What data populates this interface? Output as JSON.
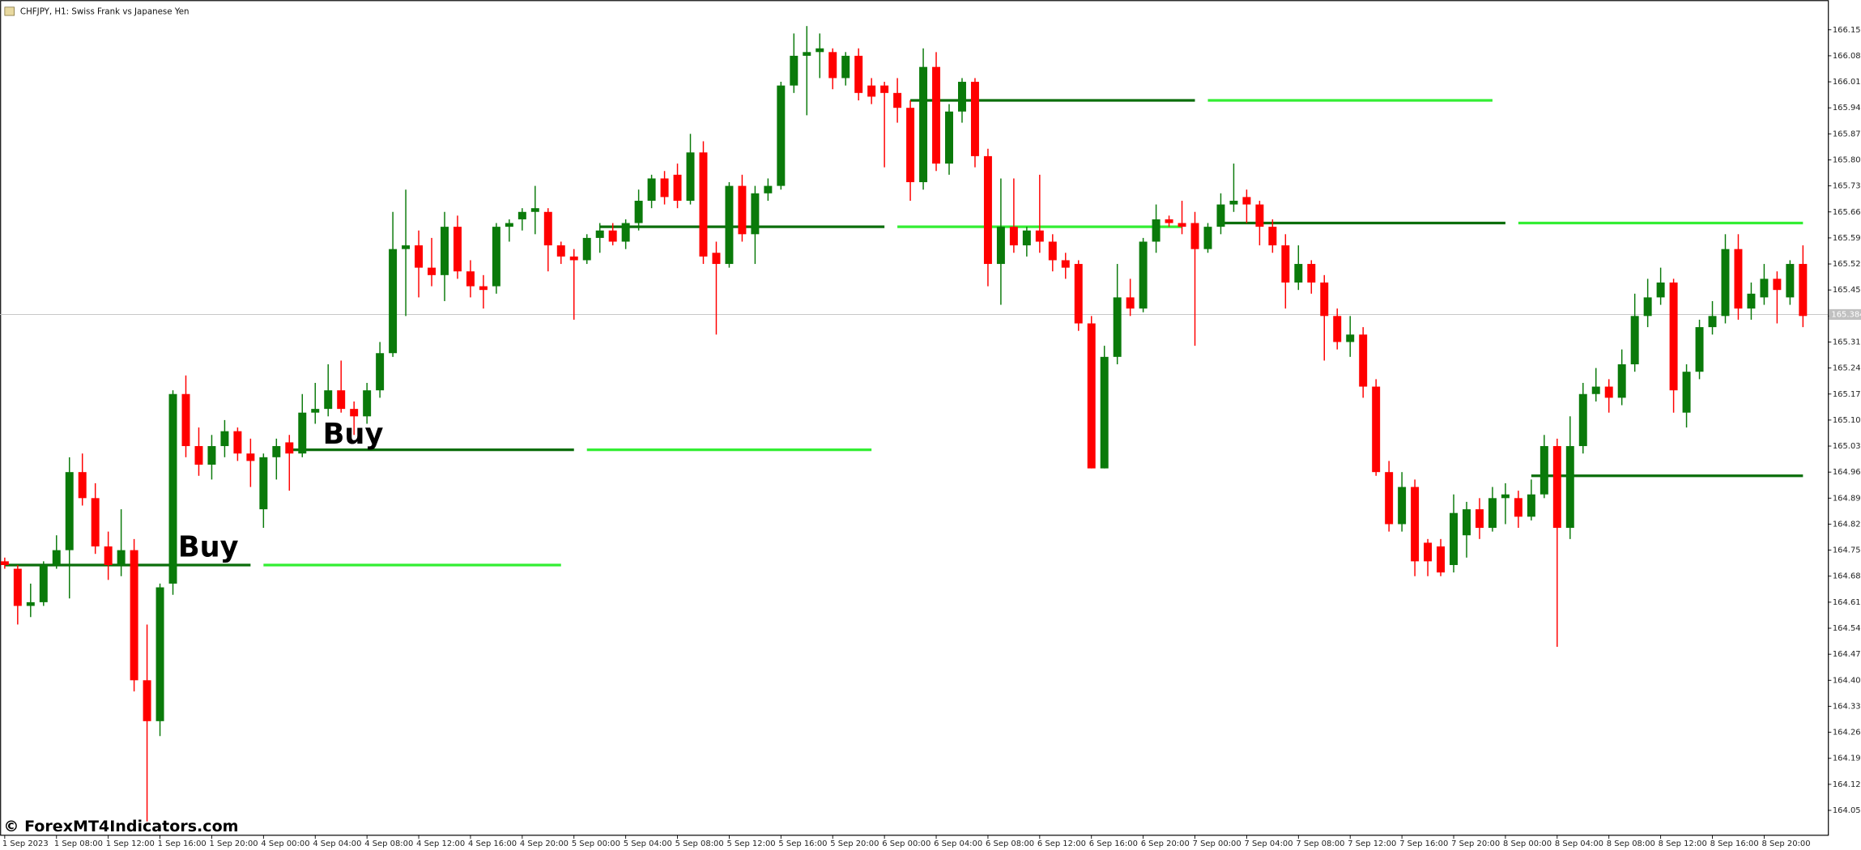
{
  "chart_data": {
    "type": "candlestick",
    "title": "CHFJPY, H1:  Swiss Frank vs Japanese Yen",
    "watermark": "© ForexMT4Indicators.com",
    "annotations": [
      "Buy",
      "Buy"
    ],
    "up_color": "#0a7a0a",
    "down_color": "#ff0000",
    "last_price": 165.384,
    "categories": [
      "1 Sep 2023",
      null,
      null,
      null,
      "1 Sep 08:00",
      null,
      null,
      null,
      "1 Sep 12:00",
      null,
      null,
      null,
      "1 Sep 16:00",
      null,
      null,
      null,
      "1 Sep 20:00",
      null,
      null,
      null,
      "4 Sep 00:00",
      null,
      null,
      null,
      "4 Sep 04:00",
      null,
      null,
      null,
      "4 Sep 08:00",
      null,
      null,
      null,
      "4 Sep 12:00",
      null,
      null,
      null,
      "4 Sep 16:00",
      null,
      null,
      null,
      "4 Sep 20:00",
      null,
      null,
      null,
      "5 Sep 00:00",
      null,
      null,
      null,
      "5 Sep 04:00",
      null,
      null,
      null,
      "5 Sep 08:00",
      null,
      null,
      null,
      "5 Sep 12:00",
      null,
      null,
      null,
      "5 Sep 16:00",
      null,
      null,
      null,
      "5 Sep 20:00",
      null,
      null,
      null,
      "6 Sep 00:00",
      null,
      null,
      null,
      "6 Sep 04:00",
      null,
      null,
      null,
      "6 Sep 08:00",
      null,
      null,
      null,
      "6 Sep 12:00",
      null,
      null,
      null,
      "6 Sep 16:00",
      null,
      null,
      null,
      "6 Sep 20:00",
      null,
      null,
      null,
      "7 Sep 00:00",
      null,
      null,
      null,
      "7 Sep 04:00",
      null,
      null,
      null,
      "7 Sep 08:00",
      null,
      null,
      null,
      "7 Sep 12:00",
      null,
      null,
      null,
      "7 Sep 16:00",
      null,
      null,
      null,
      "7 Sep 20:00",
      null,
      null,
      null,
      "8 Sep 00:00",
      null,
      null,
      null,
      "8 Sep 04:00",
      null,
      null,
      null,
      "8 Sep 08:00",
      null,
      null,
      null,
      "8 Sep 12:00",
      null,
      null,
      null,
      "8 Sep 16:00",
      null,
      null,
      null,
      "8 Sep 20:00",
      null,
      null,
      null
    ],
    "open": [
      164.72,
      164.7,
      164.6,
      164.61,
      164.71,
      164.75,
      164.96,
      164.89,
      164.76,
      164.71,
      164.75,
      164.4,
      164.29,
      164.66,
      165.17,
      165.03,
      164.98,
      165.03,
      165.07,
      165.01,
      164.86,
      165.0,
      165.04,
      165.01,
      165.12,
      165.13,
      165.18,
      165.13,
      165.11,
      165.18,
      165.28,
      165.56,
      165.57,
      165.51,
      165.49,
      165.62,
      165.5,
      165.46,
      165.46,
      165.62,
      165.64,
      165.66,
      165.66,
      165.57,
      165.54,
      165.53,
      165.59,
      165.61,
      165.58,
      165.63,
      165.69,
      165.75,
      165.76,
      165.69,
      165.82,
      165.55,
      165.52,
      165.73,
      165.6,
      165.71,
      165.73,
      166.0,
      166.08,
      166.09,
      166.09,
      166.02,
      166.08,
      166.0,
      166.0,
      165.98,
      165.94,
      165.74,
      166.05,
      165.79,
      165.93,
      166.01,
      165.81,
      165.52,
      165.62,
      165.57,
      165.61,
      165.58,
      165.53,
      165.52,
      165.36,
      164.97,
      165.27,
      165.43,
      165.4,
      165.58,
      165.64,
      165.63,
      165.63,
      165.56,
      165.62,
      165.68,
      165.7,
      165.68,
      165.62,
      165.57,
      165.47,
      165.52,
      165.47,
      165.38,
      165.31,
      165.33,
      165.19,
      164.96,
      164.82,
      164.92,
      164.77,
      164.76,
      164.71,
      164.79,
      164.86,
      164.81,
      164.89,
      164.89,
      164.84,
      164.9,
      165.03,
      164.81,
      165.03,
      165.17,
      165.19,
      165.16,
      165.25,
      165.38,
      165.43,
      165.47,
      165.12,
      165.23,
      165.35,
      165.38,
      165.56,
      165.4,
      165.43,
      165.48,
      165.43,
      165.52
    ],
    "high": [
      164.73,
      164.71,
      164.66,
      164.72,
      164.79,
      165.0,
      165.01,
      164.93,
      164.8,
      164.86,
      164.78,
      164.55,
      164.66,
      165.18,
      165.22,
      165.08,
      165.06,
      165.1,
      165.08,
      165.05,
      165.01,
      165.05,
      165.06,
      165.17,
      165.2,
      165.25,
      165.26,
      165.15,
      165.2,
      165.31,
      165.66,
      165.72,
      165.61,
      165.59,
      165.66,
      165.65,
      165.53,
      165.49,
      165.63,
      165.64,
      165.67,
      165.73,
      165.67,
      165.58,
      165.56,
      165.6,
      165.63,
      165.63,
      165.64,
      165.72,
      165.76,
      165.77,
      165.79,
      165.87,
      165.85,
      165.58,
      165.74,
      165.76,
      165.73,
      165.75,
      166.01,
      166.14,
      166.16,
      166.14,
      166.1,
      166.09,
      166.1,
      166.02,
      166.01,
      166.02,
      165.96,
      166.1,
      166.09,
      165.95,
      166.02,
      166.02,
      165.83,
      165.75,
      165.75,
      165.62,
      165.76,
      165.6,
      165.55,
      165.53,
      165.38,
      165.3,
      165.52,
      165.48,
      165.59,
      165.68,
      165.65,
      165.69,
      165.66,
      165.63,
      165.71,
      165.79,
      165.72,
      165.69,
      165.64,
      165.6,
      165.57,
      165.53,
      165.49,
      165.4,
      165.38,
      165.35,
      165.21,
      164.99,
      164.96,
      164.94,
      164.78,
      164.78,
      164.9,
      164.88,
      164.89,
      164.92,
      164.93,
      164.91,
      164.94,
      165.06,
      165.05,
      165.11,
      165.2,
      165.24,
      165.21,
      165.29,
      165.44,
      165.48,
      165.51,
      165.48,
      165.25,
      165.37,
      165.42,
      165.6,
      165.6,
      165.47,
      165.52,
      165.5,
      165.53,
      165.57
    ],
    "low": [
      164.7,
      164.55,
      164.57,
      164.6,
      164.7,
      164.62,
      164.87,
      164.74,
      164.67,
      164.68,
      164.37,
      164.02,
      164.25,
      164.63,
      165.0,
      164.95,
      164.94,
      165.0,
      164.99,
      164.92,
      164.81,
      164.94,
      164.91,
      165.0,
      165.09,
      165.11,
      165.12,
      165.06,
      165.09,
      165.16,
      165.27,
      165.38,
      165.43,
      165.46,
      165.42,
      165.48,
      165.43,
      165.4,
      165.44,
      165.58,
      165.61,
      165.6,
      165.5,
      165.52,
      165.37,
      165.52,
      165.55,
      165.57,
      165.56,
      165.61,
      165.67,
      165.68,
      165.67,
      165.68,
      165.52,
      165.33,
      165.51,
      165.58,
      165.52,
      165.69,
      165.72,
      165.98,
      165.92,
      166.02,
      165.99,
      166.0,
      165.96,
      165.95,
      165.78,
      165.9,
      165.69,
      165.72,
      165.77,
      165.76,
      165.9,
      165.78,
      165.46,
      165.41,
      165.55,
      165.54,
      165.55,
      165.5,
      165.48,
      165.34,
      164.97,
      164.97,
      165.25,
      165.38,
      165.39,
      165.55,
      165.62,
      165.6,
      165.3,
      165.55,
      165.6,
      165.66,
      165.63,
      165.57,
      165.55,
      165.4,
      165.45,
      165.44,
      165.26,
      165.29,
      165.27,
      165.16,
      164.95,
      164.8,
      164.8,
      164.68,
      164.68,
      164.68,
      164.69,
      164.73,
      164.78,
      164.8,
      164.82,
      164.81,
      164.83,
      164.89,
      164.49,
      164.78,
      165.01,
      165.15,
      165.12,
      165.14,
      165.23,
      165.35,
      165.41,
      165.12,
      165.08,
      165.21,
      165.33,
      165.36,
      165.37,
      165.37,
      165.41,
      165.36,
      165.41,
      165.35
    ],
    "close": [
      164.71,
      164.6,
      164.61,
      164.71,
      164.75,
      164.96,
      164.89,
      164.76,
      164.71,
      164.75,
      164.4,
      164.29,
      164.65,
      165.17,
      165.03,
      164.98,
      165.03,
      165.07,
      165.01,
      164.99,
      165.0,
      165.03,
      165.01,
      165.12,
      165.13,
      165.18,
      165.13,
      165.11,
      165.18,
      165.28,
      165.56,
      165.57,
      165.51,
      165.49,
      165.62,
      165.5,
      165.46,
      165.45,
      165.62,
      165.63,
      165.66,
      165.67,
      165.57,
      165.54,
      165.53,
      165.59,
      165.61,
      165.58,
      165.63,
      165.69,
      165.75,
      165.7,
      165.69,
      165.82,
      165.54,
      165.52,
      165.73,
      165.6,
      165.71,
      165.73,
      166.0,
      166.08,
      166.09,
      166.1,
      166.02,
      166.08,
      165.98,
      165.97,
      165.98,
      165.94,
      165.74,
      166.05,
      165.79,
      165.93,
      166.01,
      165.81,
      165.52,
      165.62,
      165.57,
      165.61,
      165.58,
      165.53,
      165.51,
      165.36,
      164.97,
      165.27,
      165.43,
      165.4,
      165.58,
      165.64,
      165.63,
      165.62,
      165.56,
      165.62,
      165.68,
      165.69,
      165.68,
      165.62,
      165.57,
      165.47,
      165.52,
      165.47,
      165.38,
      165.31,
      165.33,
      165.19,
      164.96,
      164.82,
      164.92,
      164.72,
      164.72,
      164.69,
      164.85,
      164.86,
      164.81,
      164.89,
      164.9,
      164.84,
      164.9,
      165.03,
      164.81,
      165.03,
      165.17,
      165.19,
      165.16,
      165.25,
      165.38,
      165.43,
      165.47,
      165.18,
      165.23,
      165.35,
      165.38,
      165.56,
      165.4,
      165.44,
      165.48,
      165.45,
      165.52,
      165.38
    ],
    "series": [
      {
        "color": "#0b6e0b",
        "values": [
          164.71,
          164.71,
          164.71,
          164.71,
          164.71,
          164.71,
          164.71,
          164.71,
          164.71,
          164.71,
          164.71,
          164.71,
          164.71,
          164.71,
          164.71,
          164.71,
          164.71,
          164.71,
          164.71,
          164.71,
          null,
          null,
          165.02,
          165.02,
          165.02,
          165.02,
          165.02,
          165.02,
          165.02,
          165.02,
          165.02,
          165.02,
          165.02,
          165.02,
          165.02,
          165.02,
          165.02,
          165.02,
          165.02,
          165.02,
          165.02,
          165.02,
          165.02,
          165.02,
          165.02,
          null,
          165.62,
          165.62,
          165.62,
          165.62,
          165.62,
          165.62,
          165.62,
          165.62,
          165.62,
          165.62,
          165.62,
          165.62,
          165.62,
          165.62,
          165.62,
          165.62,
          165.62,
          165.62,
          165.62,
          165.62,
          165.62,
          165.62,
          165.62,
          null,
          165.96,
          165.96,
          165.96,
          165.96,
          165.96,
          165.96,
          165.96,
          165.96,
          165.96,
          165.96,
          165.96,
          165.96,
          165.96,
          165.96,
          165.96,
          165.96,
          165.96,
          165.96,
          165.96,
          165.96,
          165.96,
          165.96,
          165.96,
          null,
          165.63,
          165.63,
          165.63,
          165.63,
          165.63,
          165.63,
          165.63,
          165.63,
          165.63,
          165.63,
          165.63,
          165.63,
          165.63,
          165.63,
          165.63,
          165.63,
          165.63,
          165.63,
          165.63,
          165.63,
          165.63,
          165.63,
          165.63,
          null,
          164.95,
          164.95,
          164.95,
          164.95,
          164.95,
          164.95,
          164.95,
          164.95,
          164.95,
          164.95,
          164.95,
          164.95,
          164.95,
          164.95,
          164.95,
          164.95,
          164.95,
          164.95,
          164.95,
          164.95,
          164.95,
          164.95
        ]
      },
      {
        "color": "#33ee33",
        "values": [
          null,
          null,
          null,
          null,
          null,
          null,
          null,
          null,
          null,
          null,
          null,
          null,
          null,
          null,
          null,
          null,
          null,
          null,
          null,
          null,
          164.71,
          164.71,
          164.71,
          164.71,
          164.71,
          164.71,
          164.71,
          164.71,
          164.71,
          164.71,
          164.71,
          164.71,
          164.71,
          164.71,
          164.71,
          164.71,
          164.71,
          164.71,
          164.71,
          164.71,
          164.71,
          164.71,
          164.71,
          164.71,
          null,
          165.02,
          165.02,
          165.02,
          165.02,
          165.02,
          165.02,
          165.02,
          165.02,
          165.02,
          165.02,
          165.02,
          165.02,
          165.02,
          165.02,
          165.02,
          165.02,
          165.02,
          165.02,
          165.02,
          165.02,
          165.02,
          165.02,
          165.02,
          null,
          165.62,
          165.62,
          165.62,
          165.62,
          165.62,
          165.62,
          165.62,
          165.62,
          165.62,
          165.62,
          165.62,
          165.62,
          165.62,
          165.62,
          165.62,
          165.62,
          165.62,
          165.62,
          165.62,
          165.62,
          165.62,
          165.62,
          165.62,
          null,
          165.96,
          165.96,
          165.96,
          165.96,
          165.96,
          165.96,
          165.96,
          165.96,
          165.96,
          165.96,
          165.96,
          165.96,
          165.96,
          165.96,
          165.96,
          165.96,
          165.96,
          165.96,
          165.96,
          165.96,
          165.96,
          165.96,
          165.96,
          null,
          165.63,
          165.63,
          165.63,
          165.63,
          165.63,
          165.63,
          165.63,
          165.63,
          165.63,
          165.63,
          165.63,
          165.63,
          165.63,
          165.63,
          165.63,
          165.63,
          165.63,
          165.63,
          165.63,
          165.63,
          165.63,
          165.63,
          165.63
        ]
      }
    ],
    "ylim": [
      163.983,
      166.23
    ],
    "yticks": [
      {
        "value": 166.15,
        "label": "166.150"
      },
      {
        "value": 166.08,
        "label": "166.080"
      },
      {
        "value": 166.01,
        "label": "166.010"
      },
      {
        "value": 165.94,
        "label": "165.940"
      },
      {
        "value": 165.87,
        "label": "165.870"
      },
      {
        "value": 165.8,
        "label": "165.800"
      },
      {
        "value": 165.73,
        "label": "165.730"
      },
      {
        "value": 165.66,
        "label": "165.660"
      },
      {
        "value": 165.59,
        "label": "165.590"
      },
      {
        "value": 165.52,
        "label": "165.520"
      },
      {
        "value": 165.45,
        "label": "165.450"
      },
      {
        "value": 165.38,
        "label": "165.380"
      },
      {
        "value": 165.31,
        "label": "165.310"
      },
      {
        "value": 165.24,
        "label": "165.240"
      },
      {
        "value": 165.17,
        "label": "165.170"
      },
      {
        "value": 165.1,
        "label": "165.100"
      },
      {
        "value": 165.03,
        "label": "165.030"
      },
      {
        "value": 164.96,
        "label": "164.960"
      },
      {
        "value": 164.89,
        "label": "164.890"
      },
      {
        "value": 164.82,
        "label": "164.820"
      },
      {
        "value": 164.75,
        "label": "164.750"
      },
      {
        "value": 164.68,
        "label": "164.680"
      },
      {
        "value": 164.61,
        "label": "164.610"
      },
      {
        "value": 164.54,
        "label": "164.540"
      },
      {
        "value": 164.47,
        "label": "164.470"
      },
      {
        "value": 164.4,
        "label": "164.400"
      },
      {
        "value": 164.33,
        "label": "164.330"
      },
      {
        "value": 164.26,
        "label": "164.260"
      },
      {
        "value": 164.19,
        "label": "164.190"
      },
      {
        "value": 164.12,
        "label": "164.120"
      },
      {
        "value": 164.05,
        "label": "164.050"
      }
    ]
  }
}
